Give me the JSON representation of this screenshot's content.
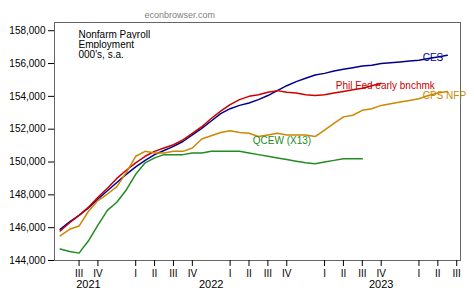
{
  "chart_data": {
    "type": "line",
    "title": "Nonfarm Payroll\nEmployment\n000's, s.a.",
    "subtitle": "econbrowser.com",
    "xlim": [
      -0.15,
      10.6
    ],
    "xticks": [
      {
        "value": 0.5,
        "label": "III"
      },
      {
        "value": 1.0,
        "label": "IV"
      },
      {
        "value": 2.0,
        "label": "I"
      },
      {
        "value": 2.5,
        "label": "II"
      },
      {
        "value": 3.0,
        "label": "III"
      },
      {
        "value": 3.5,
        "label": "IV"
      },
      {
        "value": 4.5,
        "label": "I"
      },
      {
        "value": 5.0,
        "label": "II"
      },
      {
        "value": 5.5,
        "label": "III"
      },
      {
        "value": 6.0,
        "label": "IV"
      },
      {
        "value": 7.0,
        "label": "I"
      },
      {
        "value": 7.5,
        "label": "II"
      },
      {
        "value": 8.0,
        "label": "III"
      },
      {
        "value": 8.5,
        "label": "IV"
      },
      {
        "value": 9.5,
        "label": "I"
      },
      {
        "value": 10.0,
        "label": "II"
      },
      {
        "value": 10.5,
        "label": "III"
      }
    ],
    "ylim": [
      144000,
      158500
    ],
    "yticks": [
      {
        "value": 144000,
        "label": "144,000"
      },
      {
        "value": 146000,
        "label": "146,000"
      },
      {
        "value": 148000,
        "label": "148,000"
      },
      {
        "value": 150000,
        "label": "150,000"
      },
      {
        "value": 152000,
        "label": "152,000"
      },
      {
        "value": 154000,
        "label": "154,000"
      },
      {
        "value": 156000,
        "label": "156,000"
      },
      {
        "value": 158000,
        "label": "158,000"
      }
    ],
    "grid": false,
    "series": [
      {
        "name": "CES",
        "color": "#00008B",
        "x": [
          0,
          0.25,
          0.5,
          0.75,
          1.0,
          1.25,
          1.5,
          1.75,
          2.0,
          2.25,
          2.5,
          2.75,
          3.0,
          3.25,
          3.5,
          3.75,
          4.0,
          4.25,
          4.5,
          4.75,
          5.0,
          5.25,
          5.5,
          5.75,
          6.0,
          6.25,
          6.5,
          6.75,
          7.0,
          7.25,
          7.5,
          7.75,
          8.0,
          8.25,
          8.5,
          8.75,
          9.0,
          9.25,
          9.5,
          9.75,
          10.0,
          10.25
        ],
        "values": [
          145900,
          146350,
          146750,
          147200,
          147750,
          148250,
          148750,
          149250,
          149700,
          150100,
          150450,
          150700,
          150950,
          151250,
          151650,
          152050,
          152500,
          152950,
          153250,
          153450,
          153600,
          153800,
          154050,
          154350,
          154650,
          154900,
          155100,
          155300,
          155400,
          155550,
          155650,
          155750,
          155850,
          155900,
          156000,
          156050,
          156100,
          156150,
          156200,
          156300,
          156400,
          156500
        ]
      },
      {
        "name": "Phil Fed early bnchmk",
        "color": "#cc0000",
        "x": [
          0,
          0.25,
          0.5,
          0.75,
          1.0,
          1.25,
          1.5,
          1.75,
          2.0,
          2.25,
          2.5,
          2.75,
          3.0,
          3.25,
          3.5,
          3.75,
          4.0,
          4.25,
          4.5,
          4.75,
          5.0,
          5.25,
          5.5,
          5.75,
          6.0,
          6.25,
          6.5,
          6.75,
          7.0,
          7.25,
          7.5,
          7.75,
          8.0,
          8.25,
          8.5
        ],
        "values": [
          145800,
          146300,
          146750,
          147250,
          147850,
          148400,
          149000,
          149500,
          149950,
          150350,
          150650,
          150850,
          151050,
          151350,
          151750,
          152150,
          152650,
          153100,
          153500,
          153800,
          154000,
          154100,
          154250,
          154350,
          154250,
          154200,
          154100,
          154050,
          154100,
          154200,
          154300,
          154400,
          154500,
          154650,
          154800
        ]
      },
      {
        "name": "CPS NFP",
        "color": "#cc8800",
        "x": [
          0,
          0.25,
          0.5,
          0.75,
          1.0,
          1.25,
          1.5,
          1.75,
          2.0,
          2.25,
          2.5,
          2.75,
          3.0,
          3.25,
          3.5,
          3.75,
          4.0,
          4.25,
          4.5,
          4.75,
          5.0,
          5.25,
          5.5,
          5.75,
          6.0,
          6.25,
          6.5,
          6.75,
          7.0,
          7.25,
          7.5,
          7.75,
          8.0,
          8.25,
          8.5,
          8.75,
          9.0,
          9.25,
          9.5,
          9.75,
          10.0,
          10.25
        ],
        "values": [
          145500,
          145900,
          146100,
          147000,
          147650,
          148050,
          148500,
          149350,
          150350,
          150650,
          150550,
          150550,
          150650,
          150650,
          150850,
          151400,
          151600,
          151800,
          151900,
          151800,
          151750,
          151550,
          151650,
          151750,
          151650,
          151650,
          151650,
          151550,
          151950,
          152350,
          152750,
          152850,
          153150,
          153250,
          153450,
          153550,
          153650,
          153750,
          153850,
          154050,
          154200,
          154300
        ]
      },
      {
        "name": "QCEW (X13)",
        "color": "#228B22",
        "x": [
          0,
          0.25,
          0.5,
          0.75,
          1.0,
          1.25,
          1.5,
          1.75,
          2.0,
          2.25,
          2.5,
          2.75,
          3.0,
          3.25,
          3.5,
          3.75,
          4.0,
          4.25,
          4.5,
          4.75,
          5.0,
          5.25,
          5.5,
          5.75,
          6.0,
          6.25,
          6.5,
          6.75,
          7.0,
          7.25,
          7.5,
          7.75,
          8.0
        ],
        "values": [
          144700,
          144550,
          144450,
          145200,
          146150,
          147050,
          147550,
          148300,
          149250,
          149950,
          150250,
          150450,
          150450,
          150450,
          150550,
          150550,
          150650,
          150650,
          150650,
          150650,
          150550,
          150450,
          150350,
          150250,
          150150,
          150050,
          149950,
          149900,
          150000,
          150100,
          150200,
          150200,
          150200
        ]
      }
    ],
    "annotations": [
      {
        "text": "CES",
        "x": 9.6,
        "y": 156350,
        "color": "#00008B"
      },
      {
        "text": "Phil Fed early bnchmk",
        "x": 7.3,
        "y": 154650,
        "color": "#cc0000"
      },
      {
        "text": "CPS NFP",
        "x": 9.6,
        "y": 154050,
        "color": "#cc8800"
      },
      {
        "text": "QCEW (X13)",
        "x": 5.1,
        "y": 151300,
        "color": "#228B22"
      },
      {
        "text": "2021",
        "x": 0.75
      },
      {
        "text": "2022",
        "x": 4.0
      },
      {
        "text": "2023",
        "x": 8.5
      }
    ]
  }
}
